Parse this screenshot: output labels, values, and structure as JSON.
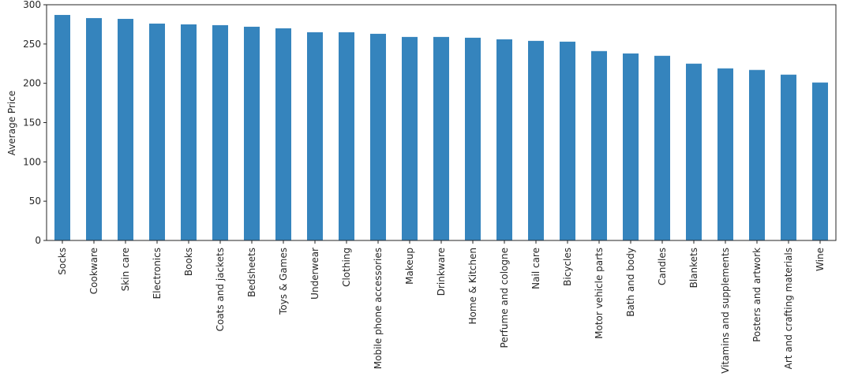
{
  "chart_data": {
    "type": "bar",
    "title": "",
    "xlabel": "",
    "ylabel": "Average Price",
    "ylim": [
      0,
      300
    ],
    "yticks": [
      0,
      50,
      100,
      150,
      200,
      250,
      300
    ],
    "grid": false,
    "legend": "none",
    "bar_color": "#3584bd",
    "categories": [
      "Socks",
      "Cookware",
      "Skin care",
      "Electronics",
      "Books",
      "Coats and jackets",
      "Bedsheets",
      "Toys & Games",
      "Underwear",
      "Clothing",
      "Mobile phone accessories",
      "Makeup",
      "Drinkware",
      "Home & Kitchen",
      "Perfume and cologne",
      "Nail care",
      "Bicycles",
      "Motor vehicle parts",
      "Bath and body",
      "Candles",
      "Blankets",
      "Vitamins and supplements",
      "Posters and artwork",
      "Art and crafting materials",
      "Wine"
    ],
    "values": [
      287,
      283,
      282,
      276,
      275,
      274,
      272,
      270,
      265,
      265,
      263,
      259,
      259,
      258,
      256,
      254,
      253,
      241,
      238,
      235,
      225,
      219,
      217,
      211,
      201
    ]
  }
}
